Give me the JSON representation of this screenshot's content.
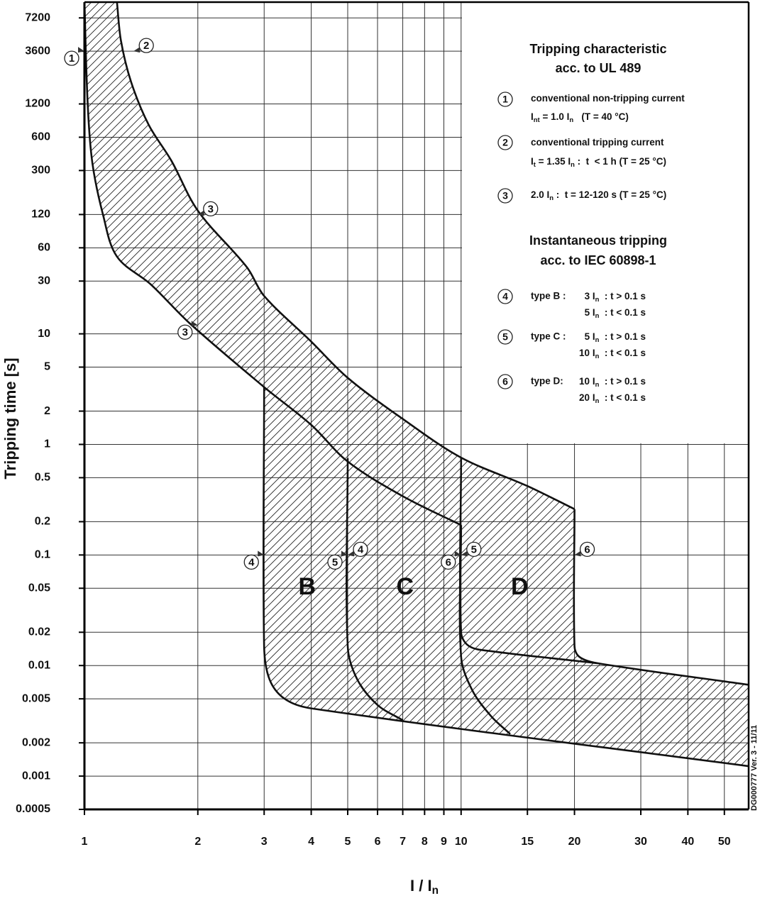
{
  "chart_data": {
    "type": "line",
    "log_x": true,
    "log_y": true,
    "grid": true,
    "hatch": true,
    "color": "#111111",
    "ylabel": "Tripping time [s]",
    "xlabel": [
      "I / I",
      {
        "sub": "n"
      }
    ],
    "xlim": [
      1,
      58
    ],
    "ylim": [
      0.0005,
      10000
    ],
    "xticks": [
      1,
      2,
      3,
      4,
      5,
      6,
      7,
      8,
      9,
      10,
      15,
      20,
      30,
      40,
      50
    ],
    "yticks": [
      0.0005,
      0.001,
      0.002,
      0.005,
      0.01,
      0.02,
      0.05,
      0.1,
      0.2,
      0.5,
      1,
      2,
      5,
      10,
      30,
      60,
      120,
      300,
      600,
      1200,
      3600,
      7200
    ],
    "series": [
      {
        "x": [
          1.22,
          1.25,
          1.33,
          1.48,
          1.7,
          2,
          2.7,
          3,
          4,
          5,
          7,
          10,
          15,
          20
        ],
        "values": [
          10000,
          4500,
          1900,
          780,
          370,
          130,
          40,
          22,
          8.5,
          4,
          1.7,
          0.76,
          0.42,
          0.26
        ]
      },
      {
        "x": [
          20,
          20,
          20.6,
          23,
          58
        ],
        "values": [
          0.26,
          0.015,
          0.012,
          0.0105,
          0.0067
        ]
      },
      {
        "x": [
          1,
          1.02,
          1.05,
          1.12,
          1.22,
          1.5,
          1.9,
          3,
          4,
          5,
          7,
          10
        ],
        "values": [
          10000,
          1200,
          350,
          120,
          50,
          28,
          12.5,
          3.3,
          1.5,
          0.7,
          0.34,
          0.186
        ]
      },
      {
        "x": [
          3,
          3,
          3.1,
          3.4,
          4,
          58
        ],
        "values": [
          3.3,
          0.015,
          0.0075,
          0.005,
          0.0041,
          0.00123
        ]
      },
      {
        "x": [
          5,
          5,
          5.3,
          6,
          7
        ],
        "values": [
          0.75,
          0.015,
          0.0075,
          0.0044,
          0.0032
        ]
      },
      {
        "x": [
          10,
          10,
          10.7,
          12,
          13.5
        ],
        "values": [
          0.186,
          0.012,
          0.006,
          0.0035,
          0.0024
        ]
      },
      {
        "x": [
          10,
          10,
          10.5,
          12,
          23
        ],
        "values": [
          0.76,
          0.02,
          0.015,
          0.0135,
          0.0105
        ]
      }
    ],
    "markers": [
      {
        "label": "1",
        "x": 1,
        "y": 3600,
        "side": "left"
      },
      {
        "label": "2",
        "x": 1.35,
        "y": 3600,
        "side": "right"
      },
      {
        "label": "3",
        "x": 2,
        "y": 120,
        "side": "right"
      },
      {
        "label": "3",
        "x": 2,
        "y": 12,
        "side": "left"
      },
      {
        "label": "4",
        "x": 3,
        "y": 0.1,
        "side": "left"
      },
      {
        "label": "5",
        "x": 5,
        "y": 0.1,
        "side": "left"
      },
      {
        "label": "4",
        "x": 5,
        "y": 0.1,
        "side": "right"
      },
      {
        "label": "6",
        "x": 10,
        "y": 0.1,
        "side": "left"
      },
      {
        "label": "5",
        "x": 10,
        "y": 0.1,
        "side": "right"
      },
      {
        "label": "6",
        "x": 20,
        "y": 0.1,
        "side": "right"
      }
    ],
    "region_labels": [
      {
        "text": "B",
        "x": 3.9,
        "y": 0.05
      },
      {
        "text": "C",
        "x": 7.1,
        "y": 0.05
      },
      {
        "text": "D",
        "x": 14.3,
        "y": 0.05
      }
    ],
    "notes": [
      {
        "heading": [
          "Tripping characteristic",
          "acc. to UL 489"
        ],
        "items": [
          {
            "number": "1",
            "lines": [
              [
                "conventional non-tripping current"
              ],
              [
                "I",
                {
                  "sub": "nt"
                },
                " = 1.0 I",
                {
                  "sub": "n"
                },
                "   (T = 40 °C)"
              ]
            ]
          },
          {
            "number": "2",
            "lines": [
              [
                "conventional tripping current"
              ],
              [
                "I",
                {
                  "sub": "t"
                },
                " = 1.35 I",
                {
                  "sub": "n"
                },
                " :  t  < 1 h (T = 25 °C)"
              ]
            ]
          },
          {
            "number": "3",
            "lines": [
              [
                "2.0 I",
                {
                  "sub": "n"
                },
                " :  t = 12-120 s (T = 25 °C)"
              ]
            ]
          }
        ]
      },
      {
        "heading": [
          "Instantaneous tripping",
          "acc. to IEC 60898-1"
        ],
        "items": [
          {
            "number": "4",
            "prefix": "type B :",
            "lines": [
              [
                "3 I",
                {
                  "sub": "n"
                },
                "  : t > 0.1 s"
              ],
              [
                "5 I",
                {
                  "sub": "n"
                },
                "  : t < 0.1 s"
              ]
            ]
          },
          {
            "number": "5",
            "prefix": "type C :",
            "lines": [
              [
                "5 I",
                {
                  "sub": "n"
                },
                "  : t > 0.1 s"
              ],
              [
                "10 I",
                {
                  "sub": "n"
                },
                "  : t < 0.1 s"
              ]
            ]
          },
          {
            "number": "6",
            "prefix": "type D:",
            "lines": [
              [
                "10 I",
                {
                  "sub": "n"
                },
                "  : t > 0.1 s"
              ],
              [
                "20 I",
                {
                  "sub": "n"
                },
                "  : t < 0.1 s"
              ]
            ]
          }
        ]
      }
    ],
    "version": "DG000777 Ver. 3 - 11/11"
  }
}
